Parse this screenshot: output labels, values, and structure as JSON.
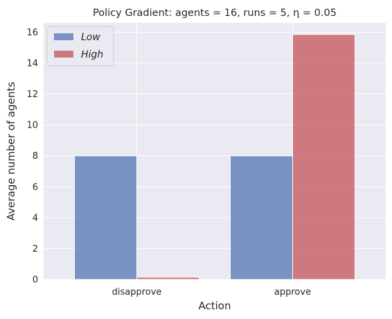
{
  "chart_data": {
    "type": "bar",
    "title": "Policy Gradient: agents = 16, runs = 5, η = 0.05",
    "xlabel": "Action",
    "ylabel": "Average number of agents",
    "categories": [
      "disapprove",
      "approve"
    ],
    "series": [
      {
        "name": "Low",
        "values": [
          8.0,
          8.0
        ],
        "color": "#4c72b0"
      },
      {
        "name": "High",
        "values": [
          0.15,
          15.85
        ],
        "color": "#c44e52"
      }
    ],
    "ylim": [
      0,
      16.6
    ],
    "yticks": [
      "0",
      "2",
      "4",
      "6",
      "8",
      "10",
      "12",
      "14",
      "16"
    ],
    "legend_position": "top-left",
    "grid": true,
    "background": "#eaeaf2"
  }
}
